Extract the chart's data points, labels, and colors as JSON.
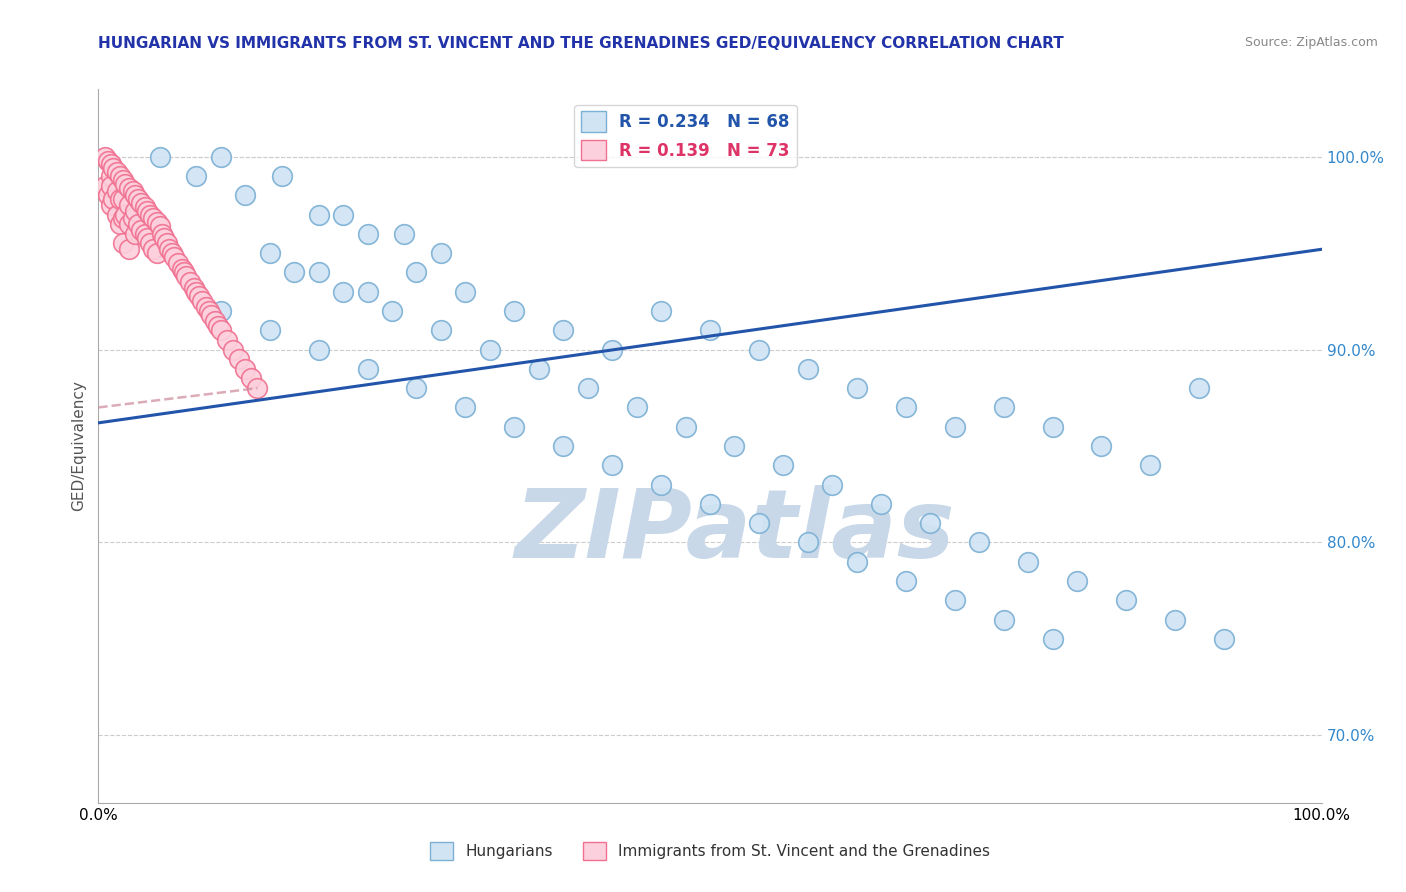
{
  "title": "HUNGARIAN VS IMMIGRANTS FROM ST. VINCENT AND THE GRENADINES GED/EQUIVALENCY CORRELATION CHART",
  "source": "Source: ZipAtlas.com",
  "ylabel": "GED/Equivalency",
  "xlim": [
    0.0,
    1.0
  ],
  "ylim": [
    0.665,
    1.035
  ],
  "x_ticks": [
    0.0,
    0.1,
    0.2,
    0.3,
    0.4,
    0.5,
    0.6,
    0.7,
    0.8,
    0.9,
    1.0
  ],
  "y_ticks": [
    0.7,
    0.8,
    0.9,
    1.0
  ],
  "y_tick_labels": [
    "70.0%",
    "80.0%",
    "90.0%",
    "100.0%"
  ],
  "blue_color": "#7bafd4",
  "blue_fill": "#d0e4f4",
  "pink_color": "#f07090",
  "pink_fill": "#fcd0dc",
  "trend_blue_color": "#2255aa",
  "trend_pink_color": "#dd8899",
  "watermark": "ZIPatlas",
  "watermark_color": "#c8d8e8",
  "blue_scatter_x": [
    0.05,
    0.1,
    0.15,
    0.2,
    0.25,
    0.08,
    0.12,
    0.18,
    0.22,
    0.28,
    0.14,
    0.18,
    0.22,
    0.26,
    0.3,
    0.34,
    0.38,
    0.42,
    0.46,
    0.5,
    0.54,
    0.58,
    0.62,
    0.66,
    0.7,
    0.74,
    0.78,
    0.82,
    0.86,
    0.9,
    0.16,
    0.2,
    0.24,
    0.28,
    0.32,
    0.36,
    0.4,
    0.44,
    0.48,
    0.52,
    0.56,
    0.6,
    0.64,
    0.68,
    0.72,
    0.76,
    0.8,
    0.84,
    0.88,
    0.92,
    0.1,
    0.14,
    0.18,
    0.22,
    0.26,
    0.3,
    0.34,
    0.38,
    0.42,
    0.46,
    0.5,
    0.54,
    0.58,
    0.62,
    0.66,
    0.7,
    0.74,
    0.78
  ],
  "blue_scatter_y": [
    1.0,
    1.0,
    0.99,
    0.97,
    0.96,
    0.99,
    0.98,
    0.97,
    0.96,
    0.95,
    0.95,
    0.94,
    0.93,
    0.94,
    0.93,
    0.92,
    0.91,
    0.9,
    0.92,
    0.91,
    0.9,
    0.89,
    0.88,
    0.87,
    0.86,
    0.87,
    0.86,
    0.85,
    0.84,
    0.88,
    0.94,
    0.93,
    0.92,
    0.91,
    0.9,
    0.89,
    0.88,
    0.87,
    0.86,
    0.85,
    0.84,
    0.83,
    0.82,
    0.81,
    0.8,
    0.79,
    0.78,
    0.77,
    0.76,
    0.75,
    0.92,
    0.91,
    0.9,
    0.89,
    0.88,
    0.87,
    0.86,
    0.85,
    0.84,
    0.83,
    0.82,
    0.81,
    0.8,
    0.79,
    0.78,
    0.77,
    0.76,
    0.75
  ],
  "pink_scatter_x": [
    0.005,
    0.005,
    0.008,
    0.008,
    0.01,
    0.01,
    0.01,
    0.01,
    0.012,
    0.012,
    0.015,
    0.015,
    0.015,
    0.018,
    0.018,
    0.018,
    0.02,
    0.02,
    0.02,
    0.02,
    0.022,
    0.022,
    0.025,
    0.025,
    0.025,
    0.025,
    0.028,
    0.028,
    0.03,
    0.03,
    0.03,
    0.032,
    0.032,
    0.035,
    0.035,
    0.038,
    0.038,
    0.04,
    0.04,
    0.042,
    0.042,
    0.045,
    0.045,
    0.048,
    0.048,
    0.05,
    0.052,
    0.054,
    0.056,
    0.058,
    0.06,
    0.062,
    0.065,
    0.068,
    0.07,
    0.072,
    0.075,
    0.078,
    0.08,
    0.082,
    0.085,
    0.088,
    0.09,
    0.092,
    0.095,
    0.098,
    0.1,
    0.105,
    0.11,
    0.115,
    0.12,
    0.125,
    0.13
  ],
  "pink_scatter_y": [
    1.0,
    0.985,
    0.998,
    0.98,
    0.996,
    0.99,
    0.985,
    0.975,
    0.994,
    0.978,
    0.992,
    0.982,
    0.97,
    0.99,
    0.978,
    0.965,
    0.988,
    0.978,
    0.968,
    0.955,
    0.986,
    0.97,
    0.984,
    0.975,
    0.965,
    0.952,
    0.982,
    0.968,
    0.98,
    0.972,
    0.96,
    0.978,
    0.965,
    0.976,
    0.962,
    0.974,
    0.96,
    0.972,
    0.958,
    0.97,
    0.955,
    0.968,
    0.952,
    0.966,
    0.95,
    0.964,
    0.96,
    0.958,
    0.955,
    0.952,
    0.95,
    0.948,
    0.945,
    0.942,
    0.94,
    0.938,
    0.935,
    0.932,
    0.93,
    0.928,
    0.925,
    0.922,
    0.92,
    0.918,
    0.915,
    0.912,
    0.91,
    0.905,
    0.9,
    0.895,
    0.89,
    0.885,
    0.88
  ],
  "blue_trend_x": [
    0.0,
    1.0
  ],
  "blue_trend_y": [
    0.862,
    0.952
  ],
  "pink_trend_x": [
    0.0,
    0.13
  ],
  "pink_trend_y": [
    0.87,
    0.88
  ],
  "figsize": [
    14.06,
    8.92
  ],
  "dpi": 100
}
